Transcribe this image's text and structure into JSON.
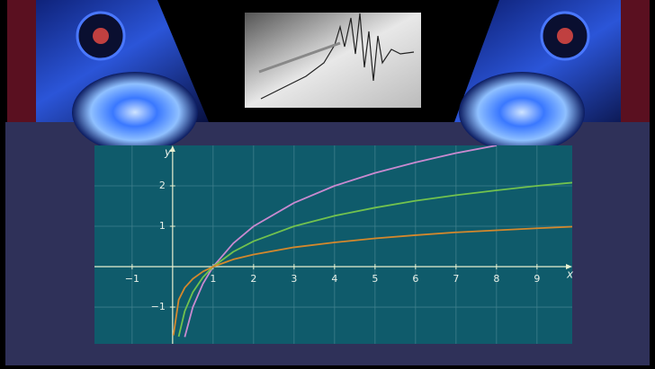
{
  "chart_data": {
    "type": "line",
    "x": [
      0.02,
      0.15,
      0.3,
      0.5,
      0.75,
      1,
      1.5,
      2,
      3,
      4,
      5,
      6,
      7,
      8,
      9,
      9.87
    ],
    "series": [
      {
        "color": "#c98ad0",
        "values": [
          null,
          null,
          -1.74,
          -1,
          -0.42,
          0,
          0.58,
          1,
          1.58,
          2,
          2.32,
          2.58,
          2.81,
          3,
          null,
          null
        ]
      },
      {
        "color": "#72c24e",
        "values": [
          null,
          -1.73,
          -1.1,
          -0.63,
          -0.26,
          0,
          0.37,
          0.63,
          1,
          1.26,
          1.46,
          1.63,
          1.77,
          1.89,
          2,
          2.08
        ]
      },
      {
        "color": "#d4882c",
        "values": [
          -1.7,
          -0.82,
          -0.52,
          -0.3,
          -0.12,
          0,
          0.18,
          0.3,
          0.48,
          0.6,
          0.7,
          0.78,
          0.85,
          0.9,
          0.95,
          0.99
        ]
      }
    ],
    "xlabel": "x",
    "ylabel": "y",
    "xlim": [
      -1.93,
      9.87
    ],
    "ylim": [
      -1.91,
      3
    ],
    "xticks": [
      {
        "value": -1,
        "label": "−1"
      },
      1,
      2,
      3,
      4,
      5,
      6,
      7,
      8,
      9
    ],
    "yticks": [
      {
        "value": -1,
        "label": "−1"
      },
      1,
      2
    ],
    "grid": true
  }
}
